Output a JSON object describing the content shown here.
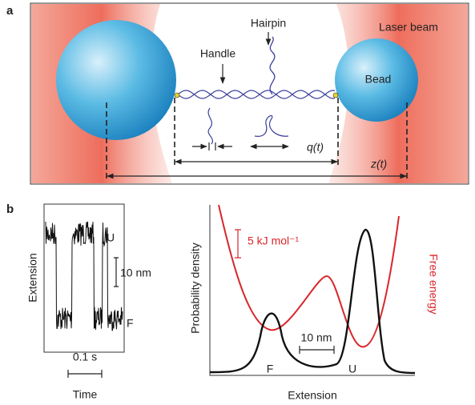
{
  "panel_a": {
    "label": "a",
    "hairpin": "Hairpin",
    "handle": "Handle",
    "laser_beam": "Laser beam",
    "bead": "Bead",
    "q": "q(t)",
    "z": "z(t)"
  },
  "panel_b": {
    "label": "b",
    "trace": {
      "y_label": "Extension",
      "x_label": "Time",
      "state_u": "U",
      "state_f": "F",
      "scale_y": "10 nm",
      "scale_x": "0.1 s"
    },
    "landscape": {
      "y_label": "Probability density",
      "y2_label": "Free energy",
      "x_label": "Extension",
      "energy_scale": "5 kJ mol⁻¹",
      "length_scale": "10 nm",
      "state_f": "F",
      "state_u": "U"
    }
  }
}
